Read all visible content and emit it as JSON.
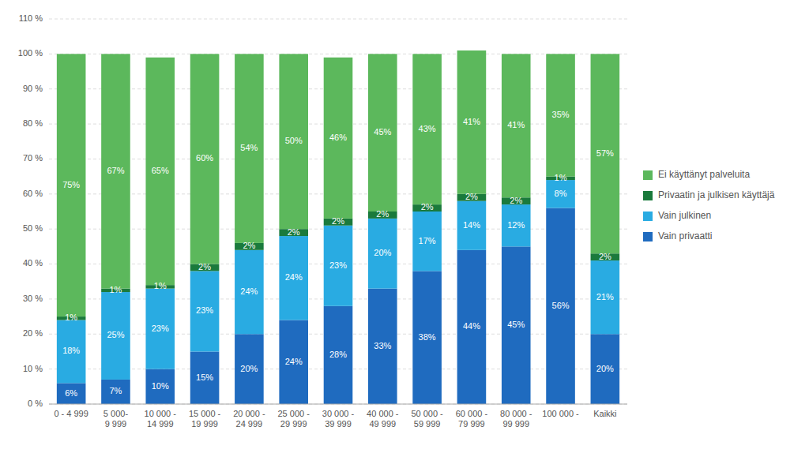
{
  "chart_data": {
    "type": "bar",
    "stacked": true,
    "data_labels": true,
    "grid": true,
    "legend": "right",
    "categories": [
      "0 - 4 999",
      "5 000-\n9 999",
      "10 000 -\n14 999",
      "15 000 -\n19 999",
      "20 000 -\n24 999",
      "25 000 -\n29 999",
      "30 000 -\n39 999",
      "40 000 -\n49 999",
      "50 000 -\n59 999",
      "60 000 -\n79 999",
      "80 000 -\n99 999",
      "100 000 -",
      "Kaikki"
    ],
    "series": [
      {
        "name": "Vain privaatti",
        "color": "#1f6bbf",
        "values": [
          6,
          7,
          10,
          15,
          20,
          24,
          28,
          33,
          38,
          44,
          45,
          56,
          20
        ],
        "value_labels": [
          "6%",
          "7%",
          "10%",
          "15%",
          "20%",
          "24%",
          "28%",
          "33%",
          "38%",
          "44%",
          "45%",
          "56%",
          "20%"
        ]
      },
      {
        "name": "Vain julkinen",
        "color": "#29abe2",
        "values": [
          18,
          25,
          23,
          23,
          24,
          24,
          23,
          20,
          17,
          14,
          12,
          8,
          21
        ],
        "value_labels": [
          "18%",
          "25%",
          "23%",
          "23%",
          "24%",
          "24%",
          "23%",
          "20%",
          "17%",
          "14%",
          "12%",
          "8%",
          "21%"
        ]
      },
      {
        "name": "Privaatin ja julkisen käyttäjä",
        "color": "#1a7a3c",
        "values": [
          1,
          1,
          1,
          2,
          2,
          2,
          2,
          2,
          2,
          2,
          2,
          1,
          2
        ],
        "value_labels": [
          "1%",
          "1%",
          "1%",
          "2%",
          "2%",
          "2%",
          "2%",
          "2%",
          "2%",
          "2%",
          "2%",
          "1%",
          "2%"
        ]
      },
      {
        "name": "Ei käyttänyt palveluita",
        "color": "#5cb85c",
        "values": [
          75,
          67,
          65,
          60,
          54,
          50,
          46,
          45,
          43,
          41,
          41,
          35,
          57
        ],
        "value_labels": [
          "75%",
          "67%",
          "65%",
          "60%",
          "54%",
          "50%",
          "46%",
          "45%",
          "43%",
          "41%",
          "41%",
          "35%",
          "57%"
        ]
      }
    ],
    "ylim": [
      0,
      110
    ],
    "yticks": [
      {
        "value": 0,
        "label": "0 %"
      },
      {
        "value": 10,
        "label": "10 %"
      },
      {
        "value": 20,
        "label": "20 %"
      },
      {
        "value": 30,
        "label": "30 %"
      },
      {
        "value": 40,
        "label": "40 %"
      },
      {
        "value": 50,
        "label": "50 %"
      },
      {
        "value": 60,
        "label": "60 %"
      },
      {
        "value": 70,
        "label": "70 %"
      },
      {
        "value": 80,
        "label": "80 %"
      },
      {
        "value": 90,
        "label": "90 %"
      },
      {
        "value": 100,
        "label": "100 %"
      },
      {
        "value": 110,
        "label": "110 %"
      }
    ]
  }
}
